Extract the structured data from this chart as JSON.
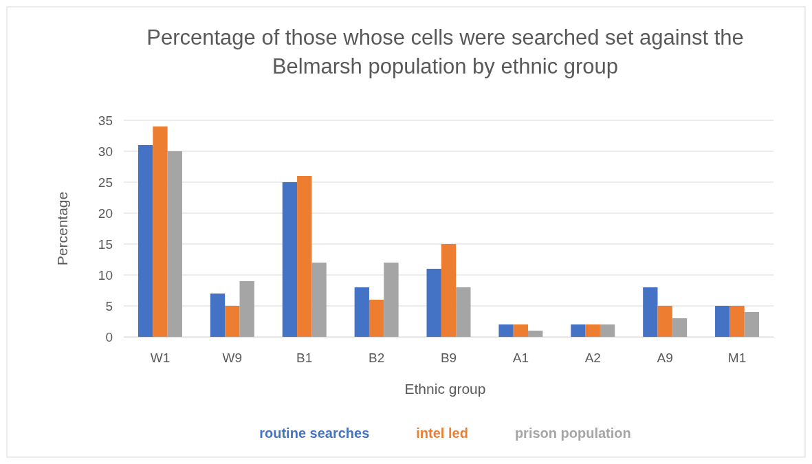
{
  "chart_data": {
    "type": "bar",
    "title": "Percentage of those whose cells were searched set against the Belmarsh population by ethnic group",
    "xlabel": "Ethnic group",
    "ylabel": "Percentage",
    "categories": [
      "W1",
      "W9",
      "B1",
      "B2",
      "B9",
      "A1",
      "A2",
      "A9",
      "M1"
    ],
    "series": [
      {
        "name": "routine searches",
        "color": "#4472c4",
        "values": [
          31,
          7,
          25,
          8,
          11,
          2,
          2,
          8,
          5
        ]
      },
      {
        "name": "intel led",
        "color": "#ed7d31",
        "values": [
          34,
          5,
          26,
          6,
          15,
          2,
          2,
          5,
          5
        ]
      },
      {
        "name": "prison population",
        "color": "#a5a5a5",
        "values": [
          30,
          9,
          12,
          12,
          8,
          1,
          2,
          3,
          4
        ]
      }
    ],
    "ylim": [
      0,
      35
    ],
    "yticks": [
      0,
      5,
      10,
      15,
      20,
      25,
      30,
      35
    ],
    "grid": "y",
    "legend": "bottom"
  }
}
